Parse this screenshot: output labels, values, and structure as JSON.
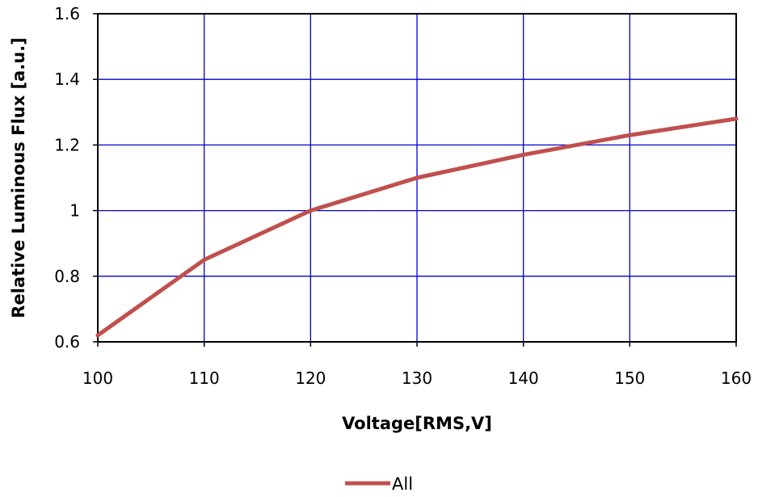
{
  "chart_data": {
    "type": "line",
    "title": "",
    "xlabel": "Voltage[RMS,V]",
    "ylabel": "Relative Luminous Flux [a.u.]",
    "xlim": [
      100,
      160
    ],
    "ylim": [
      0.6,
      1.6
    ],
    "x_ticks": [
      "100",
      "110",
      "120",
      "130",
      "140",
      "150",
      "160"
    ],
    "y_ticks": [
      "0.6",
      "0.8",
      "1",
      "1.2",
      "1.4",
      "1.6"
    ],
    "grid": true,
    "legend_position": "bottom-center",
    "series": [
      {
        "name": "All",
        "color": "#c0504d",
        "x": [
          100,
          110,
          120,
          130,
          140,
          150,
          160
        ],
        "y": [
          0.62,
          0.85,
          1.0,
          1.1,
          1.17,
          1.23,
          1.28
        ]
      }
    ]
  }
}
